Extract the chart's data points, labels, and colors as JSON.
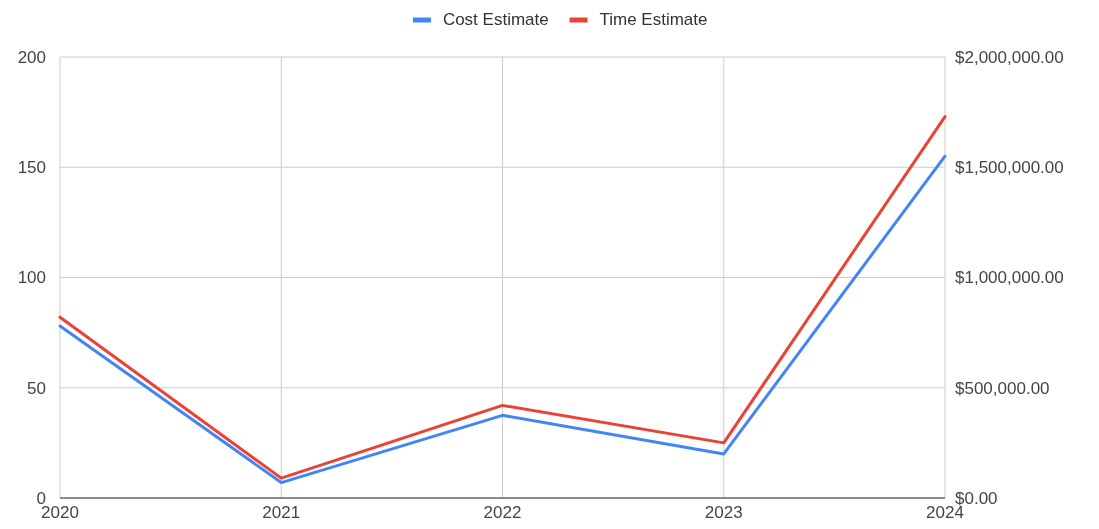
{
  "chart_data": {
    "type": "line",
    "x": [
      2020,
      2021,
      2022,
      2023,
      2024
    ],
    "xlim": [
      2020,
      2024
    ],
    "xticks": [
      2020,
      2021,
      2022,
      2023,
      2024
    ],
    "series": [
      {
        "name": "Cost Estimate",
        "color": "#4285f4",
        "axis": "y2",
        "values": [
          780000,
          70000,
          375000,
          200000,
          1550000
        ]
      },
      {
        "name": "Time Estimate",
        "color": "#ea4335",
        "axis": "y",
        "values": [
          82,
          9,
          42,
          25,
          173
        ]
      }
    ],
    "ylim": [
      0,
      200
    ],
    "yticks": [
      0,
      50,
      100,
      150,
      200
    ],
    "y2lim": [
      0,
      2000000
    ],
    "y2ticks": [
      {
        "value": 0,
        "label": "$0.00"
      },
      {
        "value": 500000,
        "label": "$500,000.00"
      },
      {
        "value": 1000000,
        "label": "$1,000,000.00"
      },
      {
        "value": 1500000,
        "label": "$1,500,000.00"
      },
      {
        "value": 2000000,
        "label": "$2,000,000.00"
      }
    ],
    "grid": true,
    "legend": "top",
    "marker": "none",
    "line_style": "solid"
  }
}
